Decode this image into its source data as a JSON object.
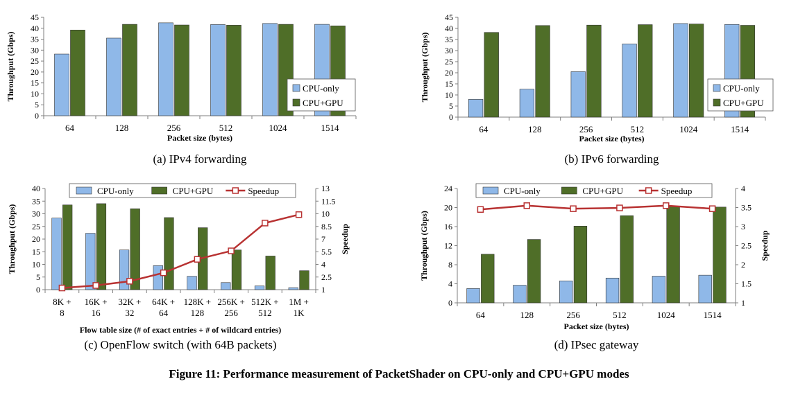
{
  "colors": {
    "cpu_only": "#8fb8e8",
    "cpu_gpu": "#4f6e28",
    "speedup": "#b83232",
    "axis": "#7f7f7f"
  },
  "figure_caption": "Figure 11: Performance measurement of PacketShader on CPU-only and CPU+GPU modes",
  "chart_data": [
    {
      "type": "bar",
      "caption": "(a) IPv4 forwarding",
      "xlabel": "Packet size (bytes)",
      "ylabel": "Throughput (Gbps)",
      "ylim": [
        0,
        45
      ],
      "yticks": [
        "0",
        "5",
        "10",
        "15",
        "20",
        "25",
        "30",
        "35",
        "40",
        "45"
      ],
      "categories": [
        "64",
        "128",
        "256",
        "512",
        "1024",
        "1514"
      ],
      "series": [
        {
          "name": "CPU-only",
          "values": [
            28.2,
            35.5,
            42.5,
            41.7,
            42.2,
            41.8
          ]
        },
        {
          "name": "CPU+GPU",
          "values": [
            39.2,
            41.8,
            41.5,
            41.4,
            41.8,
            41.1
          ]
        }
      ],
      "legend": "bottom-right",
      "grid": false
    },
    {
      "type": "bar",
      "caption": "(b) IPv6 forwarding",
      "xlabel": "Packet size (bytes)",
      "ylabel": "Throughput (Gbps)",
      "ylim": [
        0,
        45
      ],
      "yticks": [
        "0",
        "5",
        "10",
        "15",
        "20",
        "25",
        "30",
        "35",
        "40",
        "45"
      ],
      "categories": [
        "64",
        "128",
        "256",
        "512",
        "1024",
        "1514"
      ],
      "series": [
        {
          "name": "CPU-only",
          "values": [
            8.0,
            12.6,
            20.5,
            33.0,
            42.2,
            41.8
          ]
        },
        {
          "name": "CPU+GPU",
          "values": [
            38.2,
            41.3,
            41.5,
            41.7,
            42.0,
            41.4
          ]
        }
      ],
      "legend": "bottom-right",
      "grid": false
    },
    {
      "type": "bar",
      "caption": "(c) OpenFlow switch (with 64B packets)",
      "xlabel": "Flow table size (# of exact entries + # of wildcard entries)",
      "ylabel": "Throughput (Gbps)",
      "y2label": "Speedup",
      "ylim": [
        0,
        40
      ],
      "yticks": [
        "0",
        "5",
        "10",
        "15",
        "20",
        "25",
        "30",
        "35",
        "40"
      ],
      "y2lim": [
        1,
        13
      ],
      "y2ticks": [
        "1",
        "2.5",
        "4",
        "5.5",
        "7",
        "8.5",
        "10",
        "11.5",
        "13"
      ],
      "categories": [
        [
          "8K +",
          "8"
        ],
        [
          "16K +",
          "16"
        ],
        [
          "32K +",
          "32"
        ],
        [
          "64K +",
          "64"
        ],
        [
          "128K +",
          "128"
        ],
        [
          "256K +",
          "256"
        ],
        [
          "512K +",
          "512"
        ],
        [
          "1M +",
          "1K"
        ]
      ],
      "series": [
        {
          "name": "CPU-only",
          "values": [
            28.3,
            22.3,
            15.7,
            9.5,
            5.3,
            2.8,
            1.5,
            0.8
          ]
        },
        {
          "name": "CPU+GPU",
          "values": [
            33.5,
            34.0,
            32.0,
            28.5,
            24.5,
            15.7,
            13.3,
            7.5
          ]
        }
      ],
      "line_series": {
        "name": "Speedup",
        "values": [
          1.2,
          1.5,
          2.0,
          3.0,
          4.6,
          5.6,
          8.9,
          9.9
        ],
        "axis": "right"
      },
      "legend": "top",
      "grid": false
    },
    {
      "type": "bar",
      "caption": "(d) IPsec gateway",
      "xlabel": "Packet size (bytes)",
      "ylabel": "Throughput (Gbps)",
      "y2label": "Speedup",
      "ylim": [
        0,
        24
      ],
      "yticks": [
        "0",
        "4",
        "8",
        "12",
        "16",
        "20",
        "24"
      ],
      "y2lim": [
        1,
        4
      ],
      "y2ticks": [
        "1",
        "1.5",
        "2",
        "2.5",
        "3",
        "3.5",
        "4"
      ],
      "categories": [
        "64",
        "128",
        "256",
        "512",
        "1024",
        "1514"
      ],
      "series": [
        {
          "name": "CPU-only",
          "values": [
            3.0,
            3.7,
            4.6,
            5.2,
            5.6,
            5.8
          ]
        },
        {
          "name": "CPU+GPU",
          "values": [
            10.2,
            13.3,
            16.1,
            18.3,
            20.2,
            20.1
          ]
        }
      ],
      "line_series": {
        "name": "Speedup",
        "values": [
          3.45,
          3.55,
          3.47,
          3.49,
          3.55,
          3.47
        ],
        "axis": "right"
      },
      "legend": "top",
      "grid": false
    }
  ]
}
